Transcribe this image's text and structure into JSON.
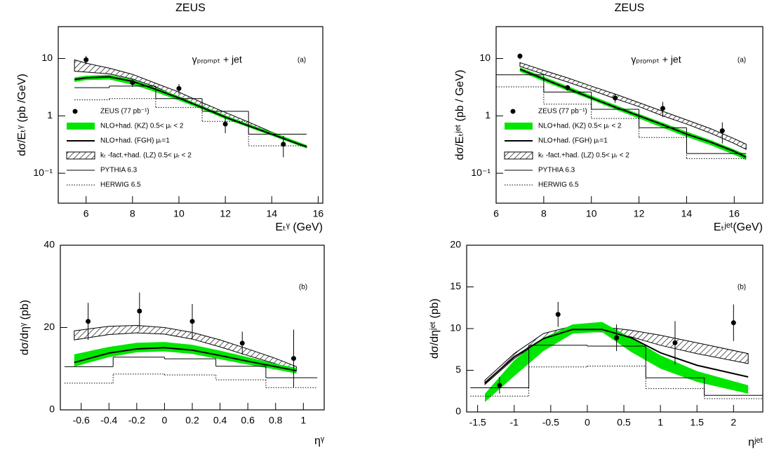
{
  "chart_data": [
    {
      "type": "line",
      "title": "ZEUS",
      "log_y": true,
      "xlim": [
        4.8,
        16.2
      ],
      "ylim": [
        0.03,
        36
      ],
      "xticks": [
        6,
        8,
        10,
        12,
        14,
        16
      ],
      "yticks": [
        {
          "value": 0.1,
          "label": "10⁻¹"
        },
        1,
        10
      ],
      "xlabel": "Eₜᵞ  (GeV)",
      "ylabel": "dσ/Eₜᵞ  (pb /GeV)",
      "label": "γₚᵣₒₘₚₜ + jet",
      "panel_label": "(a)",
      "legend": "center left",
      "series": [
        {
          "name": "ZEUS (77 pb⁻¹)",
          "style": "points",
          "color": "#000000",
          "x": [
            6,
            8,
            10,
            12,
            14.5
          ],
          "values": [
            9.5,
            3.8,
            3.0,
            0.72,
            0.32
          ],
          "errors": [
            1.6,
            0.6,
            0.6,
            0.22,
            0.13
          ]
        },
        {
          "name": "NLO+had. (KZ) 0.5< μᵣ < 2",
          "style": "band",
          "color": "#00e600",
          "x": [
            5.5,
            6,
            7,
            8,
            9,
            10,
            11,
            12,
            13,
            14,
            15,
            15.5
          ],
          "lower": [
            3.9,
            4.2,
            4.3,
            3.5,
            2.6,
            1.85,
            1.3,
            0.88,
            0.63,
            0.45,
            0.32,
            0.27
          ],
          "upper": [
            4.7,
            5.0,
            5.2,
            4.3,
            3.1,
            2.2,
            1.5,
            1.02,
            0.72,
            0.52,
            0.37,
            0.31
          ]
        },
        {
          "name": "NLO+had. (FGH)  μᵣ=1",
          "style": "line",
          "color": "#000000",
          "x": [
            5.5,
            6,
            7,
            8,
            9,
            10,
            11,
            12,
            13,
            14,
            15,
            15.5
          ],
          "values": [
            4.3,
            4.6,
            4.8,
            4.0,
            2.9,
            2.05,
            1.4,
            0.95,
            0.67,
            0.48,
            0.34,
            0.29
          ]
        },
        {
          "name": "kₜ -fact.+had. (LZ)  0.5< μᵣ < 2",
          "style": "hatch",
          "color": "#000000",
          "x": [
            5.5,
            6,
            7,
            8,
            9,
            10,
            11,
            12,
            13,
            14,
            15,
            15.5
          ],
          "lower": [
            6.0,
            5.8,
            5.4,
            4.4,
            3.2,
            2.1,
            1.45,
            1.0,
            0.7,
            0.47,
            0.33,
            0.28
          ],
          "upper": [
            9.5,
            8.3,
            6.8,
            5.3,
            3.7,
            2.6,
            1.7,
            1.15,
            0.78,
            0.52,
            0.36,
            0.3
          ]
        },
        {
          "name": "PYTHIA 6.3",
          "style": "step",
          "color": "#000000",
          "bins": [
            5.5,
            7,
            9,
            11,
            13,
            15.5
          ],
          "values": [
            3.1,
            3.3,
            2.0,
            1.2,
            0.48
          ]
        },
        {
          "name": "HERWIG 6.5",
          "style": "dotted-step",
          "color": "#000000",
          "bins": [
            5.5,
            7,
            9,
            11,
            13,
            15.5
          ],
          "values": [
            1.9,
            2.0,
            1.4,
            0.8,
            0.3
          ]
        }
      ]
    },
    {
      "type": "line",
      "title": "ZEUS",
      "log_y": true,
      "xlim": [
        6,
        17.2
      ],
      "ylim": [
        0.03,
        36
      ],
      "xticks": [
        6,
        8,
        10,
        12,
        14,
        16
      ],
      "yticks": [
        {
          "value": 0.1,
          "label": "10⁻¹"
        },
        1,
        10
      ],
      "xlabel": "Eₜʲᵉᵗ(GeV)",
      "ylabel": "dσ/Eₜʲᵉᵗ  (pb / GeV)",
      "label": "γₚᵣₒₘₚₜ + jet",
      "panel_label": "(a)",
      "legend": "center left",
      "series": [
        {
          "name": "ZEUS (77 pb⁻¹)",
          "style": "points",
          "color": "#000000",
          "x": [
            7,
            9,
            11,
            13,
            15.5
          ],
          "values": [
            11,
            3.1,
            2.05,
            1.35,
            0.55
          ],
          "errors": [
            1.3,
            0.35,
            0.35,
            0.4,
            0.22
          ]
        },
        {
          "name": "NLO+had. (KZ) 0.5< μᵣ < 2",
          "style": "band",
          "color": "#00e600",
          "x": [
            7,
            8,
            9,
            10,
            11,
            12,
            13,
            14,
            15,
            16,
            16.5
          ],
          "lower": [
            5.9,
            4.0,
            2.75,
            1.9,
            1.3,
            0.9,
            0.62,
            0.43,
            0.31,
            0.21,
            0.17
          ],
          "upper": [
            7.0,
            4.8,
            3.3,
            2.25,
            1.55,
            1.08,
            0.76,
            0.53,
            0.38,
            0.26,
            0.21
          ]
        },
        {
          "name": "NLO+had. (FGH)  μᵣ=1",
          "style": "line",
          "color": "#000000",
          "x": [
            7,
            8,
            9,
            10,
            11,
            12,
            13,
            14,
            15,
            16,
            16.5
          ],
          "values": [
            6.5,
            4.4,
            3.0,
            2.05,
            1.42,
            1.0,
            0.7,
            0.48,
            0.35,
            0.24,
            0.19
          ]
        },
        {
          "name": "kₜ -fact.+had. (LZ)  0.5< μᵣ < 2",
          "style": "hatch",
          "color": "#000000",
          "x": [
            7,
            8,
            9,
            10,
            11,
            12,
            13,
            14,
            15,
            16,
            16.5
          ],
          "lower": [
            7.3,
            5.3,
            3.9,
            2.8,
            2.0,
            1.45,
            1.0,
            0.72,
            0.5,
            0.33,
            0.26
          ],
          "upper": [
            8.5,
            6.2,
            4.6,
            3.3,
            2.4,
            1.7,
            1.2,
            0.85,
            0.6,
            0.4,
            0.32
          ]
        },
        {
          "name": "PYTHIA 6.3",
          "style": "step",
          "color": "#000000",
          "bins": [
            6,
            8,
            10,
            12,
            14,
            16.5
          ],
          "values": [
            5.2,
            2.6,
            1.3,
            0.62,
            0.22
          ]
        },
        {
          "name": "HERWIG 6.5",
          "style": "dotted-step",
          "color": "#000000",
          "bins": [
            6,
            8,
            10,
            12,
            14,
            16.5
          ],
          "values": [
            3.2,
            1.6,
            0.9,
            0.42,
            0.18
          ]
        }
      ]
    },
    {
      "type": "line",
      "log_y": false,
      "xlim": [
        -0.75,
        1.15
      ],
      "ylim": [
        0,
        40
      ],
      "xticks": [
        -0.6,
        -0.4,
        -0.2,
        0,
        0.2,
        0.4,
        0.6,
        0.8,
        1
      ],
      "yticks": [
        0,
        20,
        40
      ],
      "xlabel": "ηᵞ",
      "ylabel": "dσ/dηᵞ (pb)",
      "panel_label": "(b)",
      "series": [
        {
          "style": "points",
          "color": "#000000",
          "x": [
            -0.55,
            -0.18,
            0.2,
            0.56,
            0.93
          ],
          "values": [
            21.5,
            24,
            21.5,
            16.2,
            12.5
          ],
          "errors": [
            4.5,
            4.5,
            4.2,
            2.8,
            7
          ]
        },
        {
          "style": "band",
          "color": "#00e600",
          "x": [
            -0.65,
            -0.4,
            -0.2,
            0,
            0.2,
            0.4,
            0.6,
            0.8,
            0.95
          ],
          "lower": [
            10.5,
            12.8,
            14.0,
            14.2,
            13.6,
            12.3,
            11,
            9.8,
            8.8
          ],
          "upper": [
            13.5,
            15.3,
            16.3,
            16.5,
            15.8,
            14.4,
            12.8,
            11.2,
            10.2
          ]
        },
        {
          "style": "line",
          "color": "#000000",
          "x": [
            -0.65,
            -0.4,
            -0.2,
            0,
            0.2,
            0.4,
            0.6,
            0.8,
            0.95
          ],
          "values": [
            11.5,
            13.8,
            14.8,
            15.1,
            14.5,
            13.2,
            11.8,
            10.5,
            9.5
          ]
        },
        {
          "style": "hatch",
          "color": "#000000",
          "x": [
            -0.65,
            -0.4,
            -0.2,
            0,
            0.2,
            0.4,
            0.6,
            0.8,
            0.95
          ],
          "lower": [
            17,
            18.3,
            18.7,
            18.4,
            17.2,
            15.3,
            13.2,
            11.2,
            9.5
          ],
          "upper": [
            19.2,
            20.3,
            20.5,
            20,
            18.8,
            17,
            14.8,
            12.5,
            10.5
          ]
        },
        {
          "style": "step",
          "color": "#000000",
          "bins": [
            -0.72,
            -0.37,
            0,
            0.37,
            0.73,
            1.1
          ],
          "values": [
            10.5,
            12.8,
            12.4,
            10.6,
            7.8
          ]
        },
        {
          "style": "dotted-step",
          "color": "#000000",
          "bins": [
            -0.72,
            -0.37,
            0,
            0.37,
            0.73,
            1.1
          ],
          "values": [
            6.5,
            8.7,
            8.5,
            7.3,
            5.4
          ]
        }
      ]
    },
    {
      "type": "line",
      "log_y": false,
      "xlim": [
        -1.65,
        2.4
      ],
      "ylim": [
        0,
        20
      ],
      "xticks": [
        -1.5,
        -1,
        -0.5,
        0,
        0.5,
        1,
        1.5,
        2
      ],
      "yticks": [
        0,
        5,
        10,
        15,
        20
      ],
      "xlabel": "ηʲᵉᵗ",
      "ylabel": "dσ/dηʲᵉᵗ (pb)",
      "panel_label": "(b)",
      "series": [
        {
          "style": "points",
          "color": "#000000",
          "x": [
            -1.2,
            -0.4,
            0.4,
            1.2,
            2.0
          ],
          "values": [
            3.2,
            11.7,
            8.9,
            8.3,
            10.7
          ],
          "errors": [
            1.0,
            1.5,
            1.6,
            2.6,
            2.2
          ]
        },
        {
          "style": "band",
          "color": "#00e600",
          "x": [
            -1.4,
            -1,
            -0.6,
            -0.2,
            0.2,
            0.6,
            1,
            1.5,
            2.2
          ],
          "lower": [
            1.2,
            4.3,
            7.3,
            9.4,
            9.6,
            7.2,
            5.2,
            3.6,
            2.2
          ],
          "upper": [
            2.2,
            6.2,
            8.9,
            10.5,
            10.8,
            8.9,
            6.8,
            4.9,
            3.2
          ]
        },
        {
          "style": "line",
          "color": "#000000",
          "x": [
            -1.4,
            -1,
            -0.6,
            -0.2,
            0.2,
            0.6,
            1,
            1.5,
            2.2
          ],
          "values": [
            3.5,
            6.6,
            8.8,
            9.9,
            9.9,
            8.9,
            7.1,
            5.6,
            4.2
          ]
        },
        {
          "style": "hatch",
          "color": "#000000",
          "x": [
            -1.4,
            -1,
            -0.6,
            -0.2,
            0.2,
            0.6,
            1,
            1.5,
            2.2
          ],
          "lower": [
            3.3,
            6.4,
            8.7,
            9.6,
            9.6,
            9.0,
            8.0,
            7.0,
            5.8
          ],
          "upper": [
            3.8,
            7.0,
            9.4,
            10.3,
            10.2,
            9.8,
            9.2,
            8.3,
            7.0
          ]
        },
        {
          "style": "step",
          "color": "#000000",
          "bins": [
            -1.6,
            -0.8,
            0,
            0.8,
            1.6,
            2.4
          ],
          "values": [
            2.9,
            8.0,
            7.9,
            4.1,
            2.0
          ]
        },
        {
          "style": "dotted-step",
          "color": "#000000",
          "bins": [
            -1.6,
            -0.8,
            0,
            0.8,
            1.6,
            2.4
          ],
          "values": [
            1.9,
            5.4,
            5.5,
            2.8,
            1.6
          ]
        }
      ]
    }
  ]
}
